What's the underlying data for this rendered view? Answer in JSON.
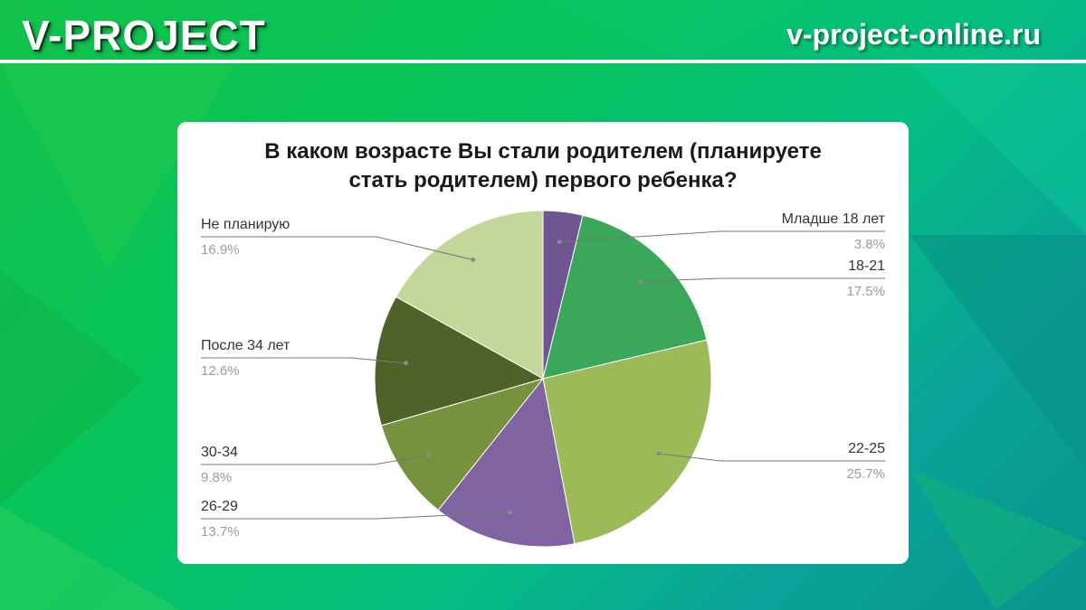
{
  "header": {
    "brand": "V-PROJECT",
    "site": "v-project-online.ru"
  },
  "chart_data": {
    "type": "pie",
    "title_lines": [
      "В каком возрасте Вы стали родителем (планируете",
      "стать родителем) первого ребенка?"
    ],
    "slices": [
      {
        "label": "Младше 18 лет",
        "pct_text": "3.8%",
        "value": 3.8,
        "color": "#6f5591",
        "side": "right"
      },
      {
        "label": "18-21",
        "pct_text": "17.5%",
        "value": 17.5,
        "color": "#3aa75a",
        "side": "right"
      },
      {
        "label": "22-25",
        "pct_text": "25.7%",
        "value": 25.7,
        "color": "#9cbb58",
        "side": "right"
      },
      {
        "label": "26-29",
        "pct_text": "13.7%",
        "value": 13.7,
        "color": "#8064a2",
        "side": "left"
      },
      {
        "label": "30-34",
        "pct_text": "9.8%",
        "value": 9.8,
        "color": "#76923c",
        "side": "left"
      },
      {
        "label": "После 34 лет",
        "pct_text": "12.6%",
        "value": 12.6,
        "color": "#4f6228",
        "side": "left"
      },
      {
        "label": "Не планирую",
        "pct_text": "16.9%",
        "value": 16.9,
        "color": "#c4d79b",
        "side": "left"
      }
    ],
    "legend": "callout-labels"
  }
}
